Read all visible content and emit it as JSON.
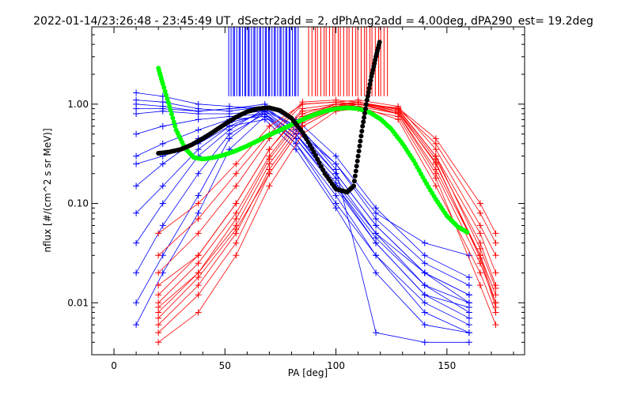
{
  "chart_data": {
    "type": "line",
    "title": "2022-01-14/23:26:48 - 23:45:49 UT, dSectr2add = 2, dPhAng2add = 4.00deg, dPA290_est=  19.2deg",
    "xlabel": "PA [deg]",
    "ylabel": "nflux [#/(cm^2 s sr MeV)]",
    "xlim": [
      -10,
      185
    ],
    "ylim": [
      0.003,
      6.0
    ],
    "yscale": "log",
    "grid": false,
    "x_ticks": [
      0,
      50,
      100,
      150
    ],
    "x_tick_labels": [
      "0",
      "50",
      "100",
      "150"
    ],
    "y_ticks": [
      0.01,
      0.1,
      1.0
    ],
    "y_tick_labels": [
      "0.01",
      "0.10",
      "1.00"
    ],
    "colors": {
      "blue_series": "#0000ff",
      "red_series": "#ff0000",
      "fit_green": "#00ff00",
      "fit_black": "#000000",
      "axes": "#000000",
      "background": "#ffffff"
    },
    "series": [
      {
        "kind": "blue-spectra",
        "color": "#0000ff",
        "marker": "plus",
        "lines": [
          {
            "x": [
              10,
              22,
              38,
              52,
              68,
              82,
              100,
              118,
              140,
              160
            ],
            "y": [
              1.3,
              1.2,
              1.0,
              0.95,
              0.9,
              0.55,
              0.2,
              0.06,
              0.02,
              0.012
            ]
          },
          {
            "x": [
              10,
              22,
              38,
              52,
              68,
              82,
              100,
              118,
              140,
              160
            ],
            "y": [
              1.1,
              1.05,
              0.9,
              0.85,
              0.95,
              0.7,
              0.3,
              0.09,
              0.03,
              0.018
            ]
          },
          {
            "x": [
              10,
              22,
              38,
              52,
              68,
              82,
              100,
              118,
              140,
              160
            ],
            "y": [
              0.8,
              0.85,
              0.8,
              0.8,
              0.85,
              0.6,
              0.25,
              0.07,
              0.025,
              0.015
            ]
          },
          {
            "x": [
              10,
              22,
              38,
              52,
              68,
              82,
              100,
              118,
              140,
              160
            ],
            "y": [
              0.5,
              0.6,
              0.7,
              0.75,
              0.8,
              0.5,
              0.18,
              0.05,
              0.015,
              0.008
            ]
          },
          {
            "x": [
              10,
              22,
              38,
              52,
              68,
              82,
              100,
              118,
              140,
              160
            ],
            "y": [
              0.3,
              0.4,
              0.55,
              0.7,
              0.75,
              0.45,
              0.15,
              0.04,
              0.012,
              0.007
            ]
          },
          {
            "x": [
              10,
              22,
              38,
              52,
              68,
              82,
              100,
              118,
              140,
              160
            ],
            "y": [
              0.15,
              0.25,
              0.45,
              0.65,
              0.8,
              0.4,
              0.12,
              0.03,
              0.01,
              0.006
            ]
          },
          {
            "x": [
              10,
              22,
              38,
              52,
              68,
              82,
              100,
              118,
              140,
              160
            ],
            "y": [
              0.08,
              0.15,
              0.35,
              0.6,
              0.85,
              0.5,
              0.16,
              0.05,
              0.02,
              0.01
            ]
          },
          {
            "x": [
              10,
              22,
              38,
              52,
              68,
              82,
              100,
              118,
              140,
              160
            ],
            "y": [
              0.04,
              0.1,
              0.3,
              0.55,
              0.9,
              0.6,
              0.2,
              0.06,
              0.02,
              0.012
            ]
          },
          {
            "x": [
              10,
              22,
              38,
              52,
              68,
              82,
              100,
              118,
              140,
              160
            ],
            "y": [
              0.02,
              0.06,
              0.2,
              0.5,
              0.8,
              0.45,
              0.14,
              0.04,
              0.012,
              0.009
            ]
          },
          {
            "x": [
              10,
              22,
              38,
              52,
              68,
              82,
              100,
              118,
              140,
              160
            ],
            "y": [
              0.01,
              0.03,
              0.12,
              0.45,
              0.85,
              0.5,
              0.15,
              0.045,
              0.015,
              0.01
            ]
          },
          {
            "x": [
              10,
              22,
              38,
              52,
              68,
              82,
              100,
              118,
              140,
              160
            ],
            "y": [
              0.006,
              0.02,
              0.08,
              0.35,
              0.75,
              0.4,
              0.1,
              0.03,
              0.008,
              0.005
            ]
          },
          {
            "x": [
              10,
              22,
              38,
              52,
              68,
              82,
              100,
              118,
              140,
              160
            ],
            "y": [
              0.9,
              0.9,
              0.85,
              0.9,
              1.0,
              0.65,
              0.22,
              0.005,
              0.004,
              0.004
            ]
          },
          {
            "x": [
              10,
              22,
              38,
              52,
              68,
              82,
              100,
              118,
              140,
              160
            ],
            "y": [
              0.25,
              0.3,
              0.4,
              0.6,
              0.7,
              0.35,
              0.09,
              0.02,
              0.006,
              0.005
            ]
          },
          {
            "x": [
              10,
              22,
              38,
              52,
              68,
              82,
              100,
              118,
              140,
              160
            ],
            "y": [
              1.0,
              0.95,
              0.85,
              0.9,
              0.95,
              0.55,
              0.25,
              0.08,
              0.04,
              0.03
            ]
          }
        ]
      },
      {
        "kind": "red-spectra",
        "color": "#ff0000",
        "marker": "plus",
        "lines": [
          {
            "x": [
              20,
              38,
              55,
              70,
              85,
              100,
              110,
              128,
              145,
              165,
              172
            ],
            "y": [
              0.015,
              0.03,
              0.1,
              0.35,
              0.9,
              1.0,
              1.0,
              0.9,
              0.3,
              0.05,
              0.02
            ]
          },
          {
            "x": [
              20,
              38,
              55,
              70,
              85,
              100,
              110,
              128,
              145,
              165,
              172
            ],
            "y": [
              0.008,
              0.02,
              0.06,
              0.25,
              0.7,
              0.95,
              1.05,
              0.85,
              0.25,
              0.03,
              0.012
            ]
          },
          {
            "x": [
              20,
              38,
              55,
              70,
              85,
              100,
              110,
              128,
              145,
              165,
              172
            ],
            "y": [
              0.005,
              0.012,
              0.04,
              0.2,
              0.6,
              0.9,
              1.0,
              0.8,
              0.2,
              0.025,
              0.01
            ]
          },
          {
            "x": [
              20,
              38,
              55,
              70,
              85,
              100,
              110,
              128,
              145,
              165,
              172
            ],
            "y": [
              0.02,
              0.05,
              0.15,
              0.45,
              1.0,
              1.05,
              1.1,
              0.95,
              0.35,
              0.06,
              0.03
            ]
          },
          {
            "x": [
              20,
              38,
              55,
              70,
              85,
              100,
              110,
              128,
              145,
              165,
              172
            ],
            "y": [
              0.01,
              0.025,
              0.08,
              0.3,
              0.8,
              1.0,
              0.95,
              0.7,
              0.15,
              0.02,
              0.008
            ]
          },
          {
            "x": [
              20,
              38,
              55,
              70,
              85,
              100,
              110,
              128,
              145,
              165,
              172
            ],
            "y": [
              0.004,
              0.008,
              0.03,
              0.15,
              0.5,
              0.85,
              0.9,
              0.75,
              0.18,
              0.015,
              0.006
            ]
          },
          {
            "x": [
              20,
              38,
              55,
              70,
              85,
              100,
              110,
              128,
              145,
              165,
              172
            ],
            "y": [
              0.03,
              0.07,
              0.2,
              0.5,
              1.05,
              1.1,
              1.05,
              0.9,
              0.4,
              0.08,
              0.04
            ]
          },
          {
            "x": [
              20,
              38,
              55,
              70,
              85,
              100,
              110,
              128,
              145,
              165,
              172
            ],
            "y": [
              0.012,
              0.03,
              0.1,
              0.35,
              0.85,
              0.95,
              1.0,
              0.85,
              0.28,
              0.04,
              0.015
            ]
          },
          {
            "x": [
              20,
              38,
              55,
              70,
              85,
              100,
              110,
              128,
              145,
              165,
              172
            ],
            "y": [
              0.006,
              0.015,
              0.05,
              0.22,
              0.65,
              0.9,
              0.95,
              0.8,
              0.22,
              0.03,
              0.01
            ]
          },
          {
            "x": [
              20,
              38,
              55,
              70,
              85,
              100,
              110,
              128,
              145,
              165,
              172
            ],
            "y": [
              0.05,
              0.1,
              0.25,
              0.6,
              1.0,
              1.05,
              1.0,
              0.92,
              0.45,
              0.1,
              0.05
            ]
          },
          {
            "x": [
              20,
              38,
              55,
              70,
              85,
              100,
              110,
              128,
              145,
              165,
              172
            ],
            "y": [
              0.009,
              0.02,
              0.07,
              0.28,
              0.75,
              1.0,
              1.05,
              0.88,
              0.3,
              0.035,
              0.014
            ]
          },
          {
            "x": [
              20,
              38,
              55,
              70,
              85,
              100,
              110,
              128,
              145,
              165,
              172
            ],
            "y": [
              0.007,
              0.018,
              0.055,
              0.2,
              0.6,
              0.9,
              1.0,
              0.82,
              0.26,
              0.028,
              0.009
            ]
          }
        ]
      }
    ],
    "fits": [
      {
        "kind": "green-fit",
        "color": "#00ff00",
        "x": [
          20,
          22,
          25,
          28,
          32,
          36,
          40,
          45,
          50,
          55,
          60,
          65,
          70,
          75,
          80,
          85,
          90,
          95,
          100,
          105,
          110,
          115,
          120,
          125,
          130,
          135,
          140,
          145,
          150,
          155,
          160
        ],
        "y": [
          2.3,
          1.6,
          0.95,
          0.55,
          0.36,
          0.29,
          0.28,
          0.29,
          0.31,
          0.34,
          0.38,
          0.43,
          0.49,
          0.55,
          0.62,
          0.7,
          0.78,
          0.85,
          0.9,
          0.92,
          0.9,
          0.83,
          0.71,
          0.56,
          0.4,
          0.27,
          0.17,
          0.11,
          0.075,
          0.058,
          0.05
        ]
      },
      {
        "kind": "black-fit",
        "color": "#000000",
        "x": [
          20,
          25,
          30,
          35,
          40,
          45,
          50,
          55,
          60,
          65,
          70,
          75,
          80,
          85,
          90,
          95,
          100,
          105,
          108,
          110,
          112,
          114,
          116,
          118,
          120
        ],
        "y": [
          0.32,
          0.33,
          0.35,
          0.39,
          0.45,
          0.53,
          0.63,
          0.74,
          0.84,
          0.9,
          0.92,
          0.86,
          0.72,
          0.52,
          0.33,
          0.2,
          0.14,
          0.13,
          0.15,
          0.3,
          0.6,
          1.1,
          1.9,
          3.0,
          4.5
        ]
      }
    ],
    "top_markers": [
      {
        "color": "#0000ff",
        "x_range": [
          52,
          83
        ],
        "count": 38
      },
      {
        "color": "#ff0000",
        "x_range": [
          88,
          123
        ],
        "count": 28
      }
    ]
  }
}
